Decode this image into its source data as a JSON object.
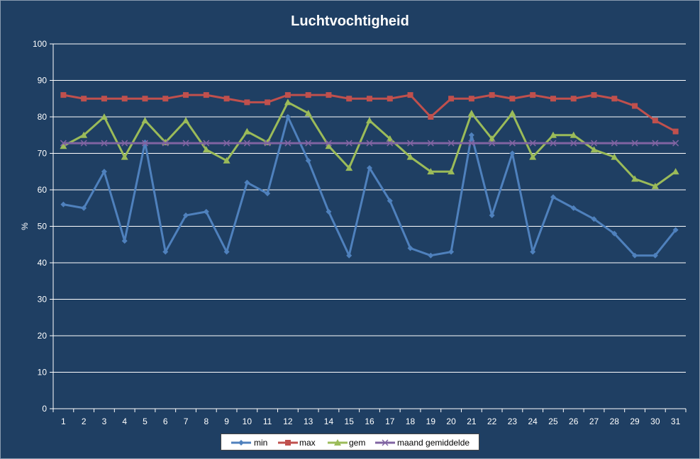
{
  "chart_data": {
    "type": "line",
    "title": "Luchtvochtigheid",
    "xlabel": "",
    "ylabel": "%",
    "ylim": [
      0,
      100
    ],
    "yticks": [
      0,
      10,
      20,
      30,
      40,
      50,
      60,
      70,
      80,
      90,
      100
    ],
    "categories": [
      "1",
      "2",
      "3",
      "4",
      "5",
      "6",
      "7",
      "8",
      "9",
      "10",
      "11",
      "12",
      "13",
      "14",
      "15",
      "16",
      "17",
      "18",
      "19",
      "20",
      "21",
      "22",
      "23",
      "24",
      "25",
      "26",
      "27",
      "28",
      "29",
      "30",
      "31"
    ],
    "grid": "horizontal",
    "legend_position": "bottom",
    "series": [
      {
        "name": "min",
        "color": "#4f81bd",
        "marker": "diamond",
        "values": [
          56,
          55,
          65,
          46,
          73,
          43,
          53,
          54,
          43,
          62,
          59,
          80,
          68,
          54,
          42,
          66,
          57,
          44,
          42,
          43,
          75,
          53,
          70,
          43,
          58,
          55,
          52,
          48,
          42,
          42,
          49
        ]
      },
      {
        "name": "max",
        "color": "#c0504d",
        "marker": "square",
        "values": [
          86,
          85,
          85,
          85,
          85,
          85,
          86,
          86,
          85,
          84,
          84,
          86,
          86,
          86,
          85,
          85,
          85,
          86,
          80,
          85,
          85,
          86,
          85,
          86,
          85,
          85,
          86,
          85,
          83,
          79,
          76
        ]
      },
      {
        "name": "gem",
        "color": "#9bbb59",
        "marker": "triangle",
        "values": [
          72,
          75,
          80,
          69,
          79,
          73,
          79,
          71,
          68,
          76,
          73,
          84,
          81,
          72,
          66,
          79,
          74,
          69,
          65,
          65,
          81,
          74,
          81,
          69,
          75,
          75,
          71,
          69,
          63,
          61,
          65
        ]
      },
      {
        "name": "maand gemiddelde",
        "color": "#8064a2",
        "marker": "x",
        "values": [
          72.8,
          72.8,
          72.8,
          72.8,
          72.8,
          72.8,
          72.8,
          72.8,
          72.8,
          72.8,
          72.8,
          72.8,
          72.8,
          72.8,
          72.8,
          72.8,
          72.8,
          72.8,
          72.8,
          72.8,
          72.8,
          72.8,
          72.8,
          72.8,
          72.8,
          72.8,
          72.8,
          72.8,
          72.8,
          72.8,
          72.8
        ]
      }
    ]
  }
}
